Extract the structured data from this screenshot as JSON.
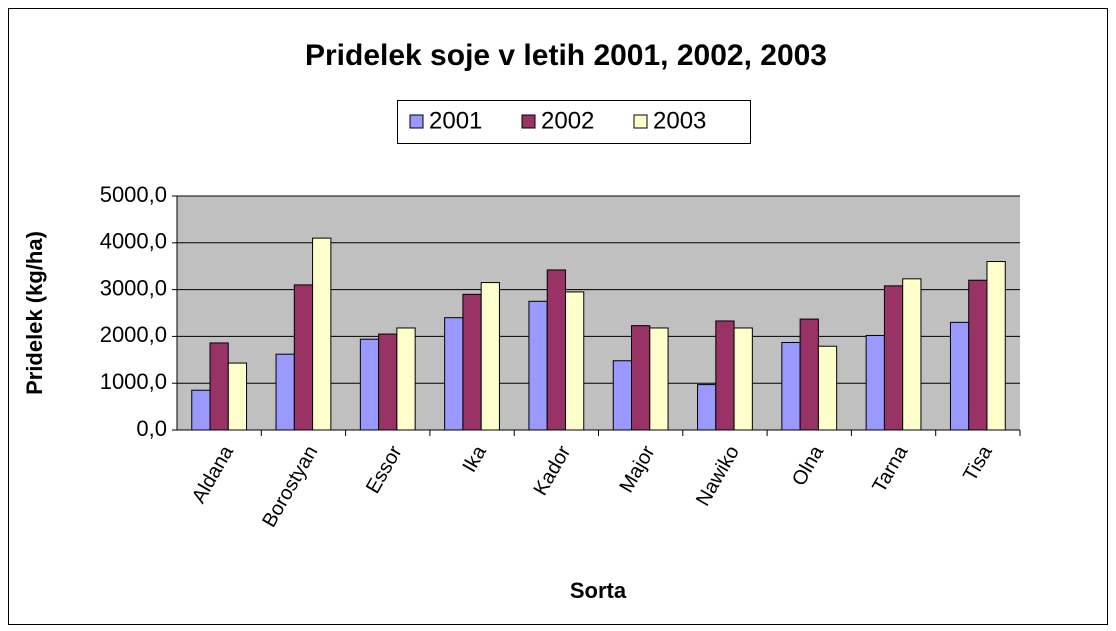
{
  "chart_data": {
    "type": "bar",
    "title": "Pridelek soje v letih 2001, 2002, 2003",
    "x_label": "Sorta",
    "y_label": "Pridelek  (kg/ha)",
    "categories": [
      "Aldana",
      "Borostyan",
      "Essor",
      "Ika",
      "Kador",
      "Major",
      "Nawiko",
      "Olna",
      "Tarna",
      "Tisa"
    ],
    "series": [
      {
        "name": "2001",
        "color": "#9999ff",
        "values": [
          850,
          1620,
          1940,
          2400,
          2750,
          1480,
          970,
          1870,
          2020,
          2300
        ]
      },
      {
        "name": "2002",
        "color": "#993366",
        "values": [
          1860,
          3100,
          2050,
          2900,
          3420,
          2230,
          2330,
          2370,
          3080,
          3200
        ]
      },
      {
        "name": "2003",
        "color": "#ffffcc",
        "values": [
          1430,
          4100,
          2180,
          3150,
          2950,
          2180,
          2180,
          1790,
          3230,
          3600
        ]
      }
    ],
    "ylim": [
      0,
      5000
    ],
    "yticks": [
      {
        "value": 0,
        "label": "0,0"
      },
      {
        "value": 1000,
        "label": "1000,0"
      },
      {
        "value": 2000,
        "label": "2000,0"
      },
      {
        "value": 3000,
        "label": "3000,0"
      },
      {
        "value": 4000,
        "label": "4000,0"
      },
      {
        "value": 5000,
        "label": "5000,0"
      }
    ],
    "grid": true,
    "legend": "top",
    "plot_background": "#c0c0c0"
  }
}
